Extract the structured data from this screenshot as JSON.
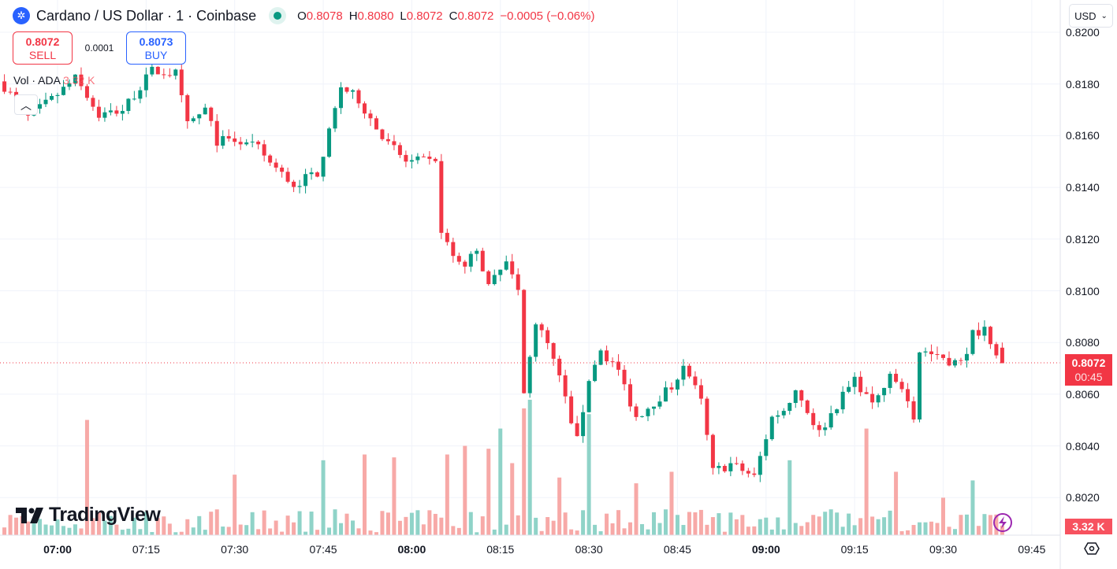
{
  "header": {
    "logo_icon": "cardano-icon",
    "title": "Cardano / US Dollar · 1 · Coinbase",
    "status": "market-open-dot",
    "ohlc": {
      "o_label": "O",
      "o": "0.8078",
      "h_label": "H",
      "h": "0.8080",
      "l_label": "L",
      "l": "0.8072",
      "c_label": "C",
      "c": "0.8072",
      "change": "−0.0005 (−0.06%)"
    }
  },
  "trade": {
    "sell_price": "0.8072",
    "sell_label": "SELL",
    "spread": "0.0001",
    "buy_price": "0.8073",
    "buy_label": "BUY"
  },
  "volume_legend": {
    "label": "Vol · ADA",
    "value": "3.32 K"
  },
  "currency": "USD",
  "last_price": {
    "price": "0.8072",
    "countdown": "00:45",
    "volume": "3.32 K"
  },
  "brand": "TradingView",
  "colors": {
    "up": "#089981",
    "down": "#f23645",
    "up_vol": "#8fd3c8",
    "down_vol": "#f7a9a7"
  },
  "chart_data": {
    "type": "candlestick",
    "interval": "1 minute",
    "y_ticks": [
      "0.8200",
      "0.8180",
      "0.8160",
      "0.8140",
      "0.8120",
      "0.8100",
      "0.8080",
      "0.8060",
      "0.8040",
      "0.8020"
    ],
    "ylim": [
      0.8011,
      0.8201
    ],
    "x_ticks": [
      {
        "t": "07:00",
        "bold": true
      },
      {
        "t": "07:15"
      },
      {
        "t": "07:30"
      },
      {
        "t": "07:45"
      },
      {
        "t": "08:00",
        "bold": true
      },
      {
        "t": "08:15"
      },
      {
        "t": "08:30"
      },
      {
        "t": "08:45"
      },
      {
        "t": "09:00",
        "bold": true
      },
      {
        "t": "09:15"
      },
      {
        "t": "09:30"
      },
      {
        "t": "09:45"
      }
    ],
    "xlim_minutes_from_0700": [
      -9.7,
      172
    ],
    "first_candle": "06:51",
    "last_candle": "09:40",
    "close_waypoints": [
      [
        "06:51",
        0.8179
      ],
      [
        "06:55",
        0.8167
      ],
      [
        "06:59",
        0.8174
      ],
      [
        "07:03",
        0.8182
      ],
      [
        "07:07",
        0.8168
      ],
      [
        "07:11",
        0.817
      ],
      [
        "07:16",
        0.8185
      ],
      [
        "07:20",
        0.8184
      ],
      [
        "07:22",
        0.8164
      ],
      [
        "07:25",
        0.817
      ],
      [
        "07:27",
        0.8158
      ],
      [
        "07:30",
        0.8158
      ],
      [
        "07:34",
        0.8155
      ],
      [
        "07:37",
        0.8147
      ],
      [
        "07:40",
        0.8141
      ],
      [
        "07:44",
        0.8146
      ],
      [
        "07:46",
        0.8161
      ],
      [
        "07:48",
        0.8179
      ],
      [
        "07:51",
        0.8174
      ],
      [
        "07:55",
        0.8159
      ],
      [
        "07:59",
        0.815
      ],
      [
        "08:02",
        0.815
      ],
      [
        "08:04",
        0.8149
      ],
      [
        "08:05",
        0.8124
      ],
      [
        "08:07",
        0.8112
      ],
      [
        "08:09",
        0.8109
      ],
      [
        "08:11",
        0.8117
      ],
      [
        "08:13",
        0.8101
      ],
      [
        "08:16",
        0.8111
      ],
      [
        "08:18",
        0.81
      ],
      [
        "08:19",
        0.806
      ],
      [
        "08:21",
        0.8088
      ],
      [
        "08:23",
        0.8079
      ],
      [
        "08:25",
        0.8066
      ],
      [
        "08:28",
        0.8042
      ],
      [
        "08:30",
        0.8066
      ],
      [
        "08:32",
        0.8077
      ],
      [
        "08:35",
        0.8069
      ],
      [
        "08:38",
        0.8051
      ],
      [
        "08:41",
        0.8057
      ],
      [
        "08:44",
        0.8063
      ],
      [
        "08:46",
        0.8072
      ],
      [
        "08:49",
        0.8057
      ],
      [
        "08:51",
        0.803
      ],
      [
        "08:54",
        0.8033
      ],
      [
        "08:58",
        0.8028
      ],
      [
        "09:01",
        0.8051
      ],
      [
        "09:03",
        0.8054
      ],
      [
        "09:05",
        0.8062
      ],
      [
        "09:09",
        0.8045
      ],
      [
        "09:12",
        0.8056
      ],
      [
        "09:15",
        0.8066
      ],
      [
        "09:18",
        0.8056
      ],
      [
        "09:21",
        0.8066
      ],
      [
        "09:23",
        0.8063
      ],
      [
        "09:25",
        0.8051
      ],
      [
        "09:26",
        0.8077
      ],
      [
        "09:29",
        0.8074
      ],
      [
        "09:33",
        0.8072
      ],
      [
        "09:35",
        0.8083
      ],
      [
        "09:37",
        0.8086
      ],
      [
        "09:40",
        0.8072
      ]
    ],
    "last_candle_ohlc": {
      "o": 0.8078,
      "h": 0.808,
      "l": 0.8072,
      "c": 0.8072
    },
    "volume_unit": "K ADA",
    "volume_spikes": [
      [
        "07:05",
        40
      ],
      [
        "07:30",
        21
      ],
      [
        "07:45",
        26
      ],
      [
        "07:52",
        28
      ],
      [
        "07:57",
        27
      ],
      [
        "08:06",
        28
      ],
      [
        "08:09",
        31
      ],
      [
        "08:13",
        30
      ],
      [
        "08:15",
        37
      ],
      [
        "08:17",
        25
      ],
      [
        "08:19",
        44
      ],
      [
        "08:20",
        47
      ],
      [
        "08:25",
        20
      ],
      [
        "08:30",
        42
      ],
      [
        "08:38",
        18
      ],
      [
        "08:44",
        22
      ],
      [
        "09:04",
        26
      ],
      [
        "09:17",
        37
      ],
      [
        "09:22",
        22
      ],
      [
        "09:30",
        13
      ],
      [
        "09:35",
        19
      ],
      [
        "09:40",
        3.32
      ]
    ],
    "volume_max_axis": 56
  }
}
